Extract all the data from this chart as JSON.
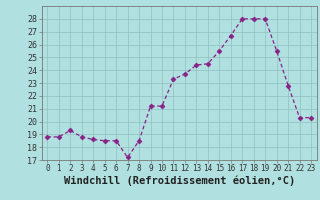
{
  "x": [
    0,
    1,
    2,
    3,
    4,
    5,
    6,
    7,
    8,
    9,
    10,
    11,
    12,
    13,
    14,
    15,
    16,
    17,
    18,
    19,
    20,
    21,
    22,
    23
  ],
  "y": [
    18.8,
    18.8,
    19.3,
    18.8,
    18.6,
    18.5,
    18.5,
    17.2,
    18.5,
    21.2,
    21.2,
    23.3,
    23.7,
    24.4,
    24.5,
    25.5,
    26.7,
    28.0,
    28.0,
    28.0,
    25.5,
    22.8,
    20.3,
    20.3
  ],
  "line_color": "#882288",
  "marker": "D",
  "marker_size": 2.5,
  "bg_color": "#b0e0e0",
  "grid_color": "#8fbfbf",
  "xlabel": "Windchill (Refroidissement éolien,°C)",
  "xlabel_fontsize": 7.5,
  "ylim": [
    17,
    29
  ],
  "yticks": [
    17,
    18,
    19,
    20,
    21,
    22,
    23,
    24,
    25,
    26,
    27,
    28
  ],
  "xticks": [
    0,
    1,
    2,
    3,
    4,
    5,
    6,
    7,
    8,
    9,
    10,
    11,
    12,
    13,
    14,
    15,
    16,
    17,
    18,
    19,
    20,
    21,
    22,
    23
  ],
  "tick_fontsize": 5.5,
  "ytick_fontsize": 6.0
}
